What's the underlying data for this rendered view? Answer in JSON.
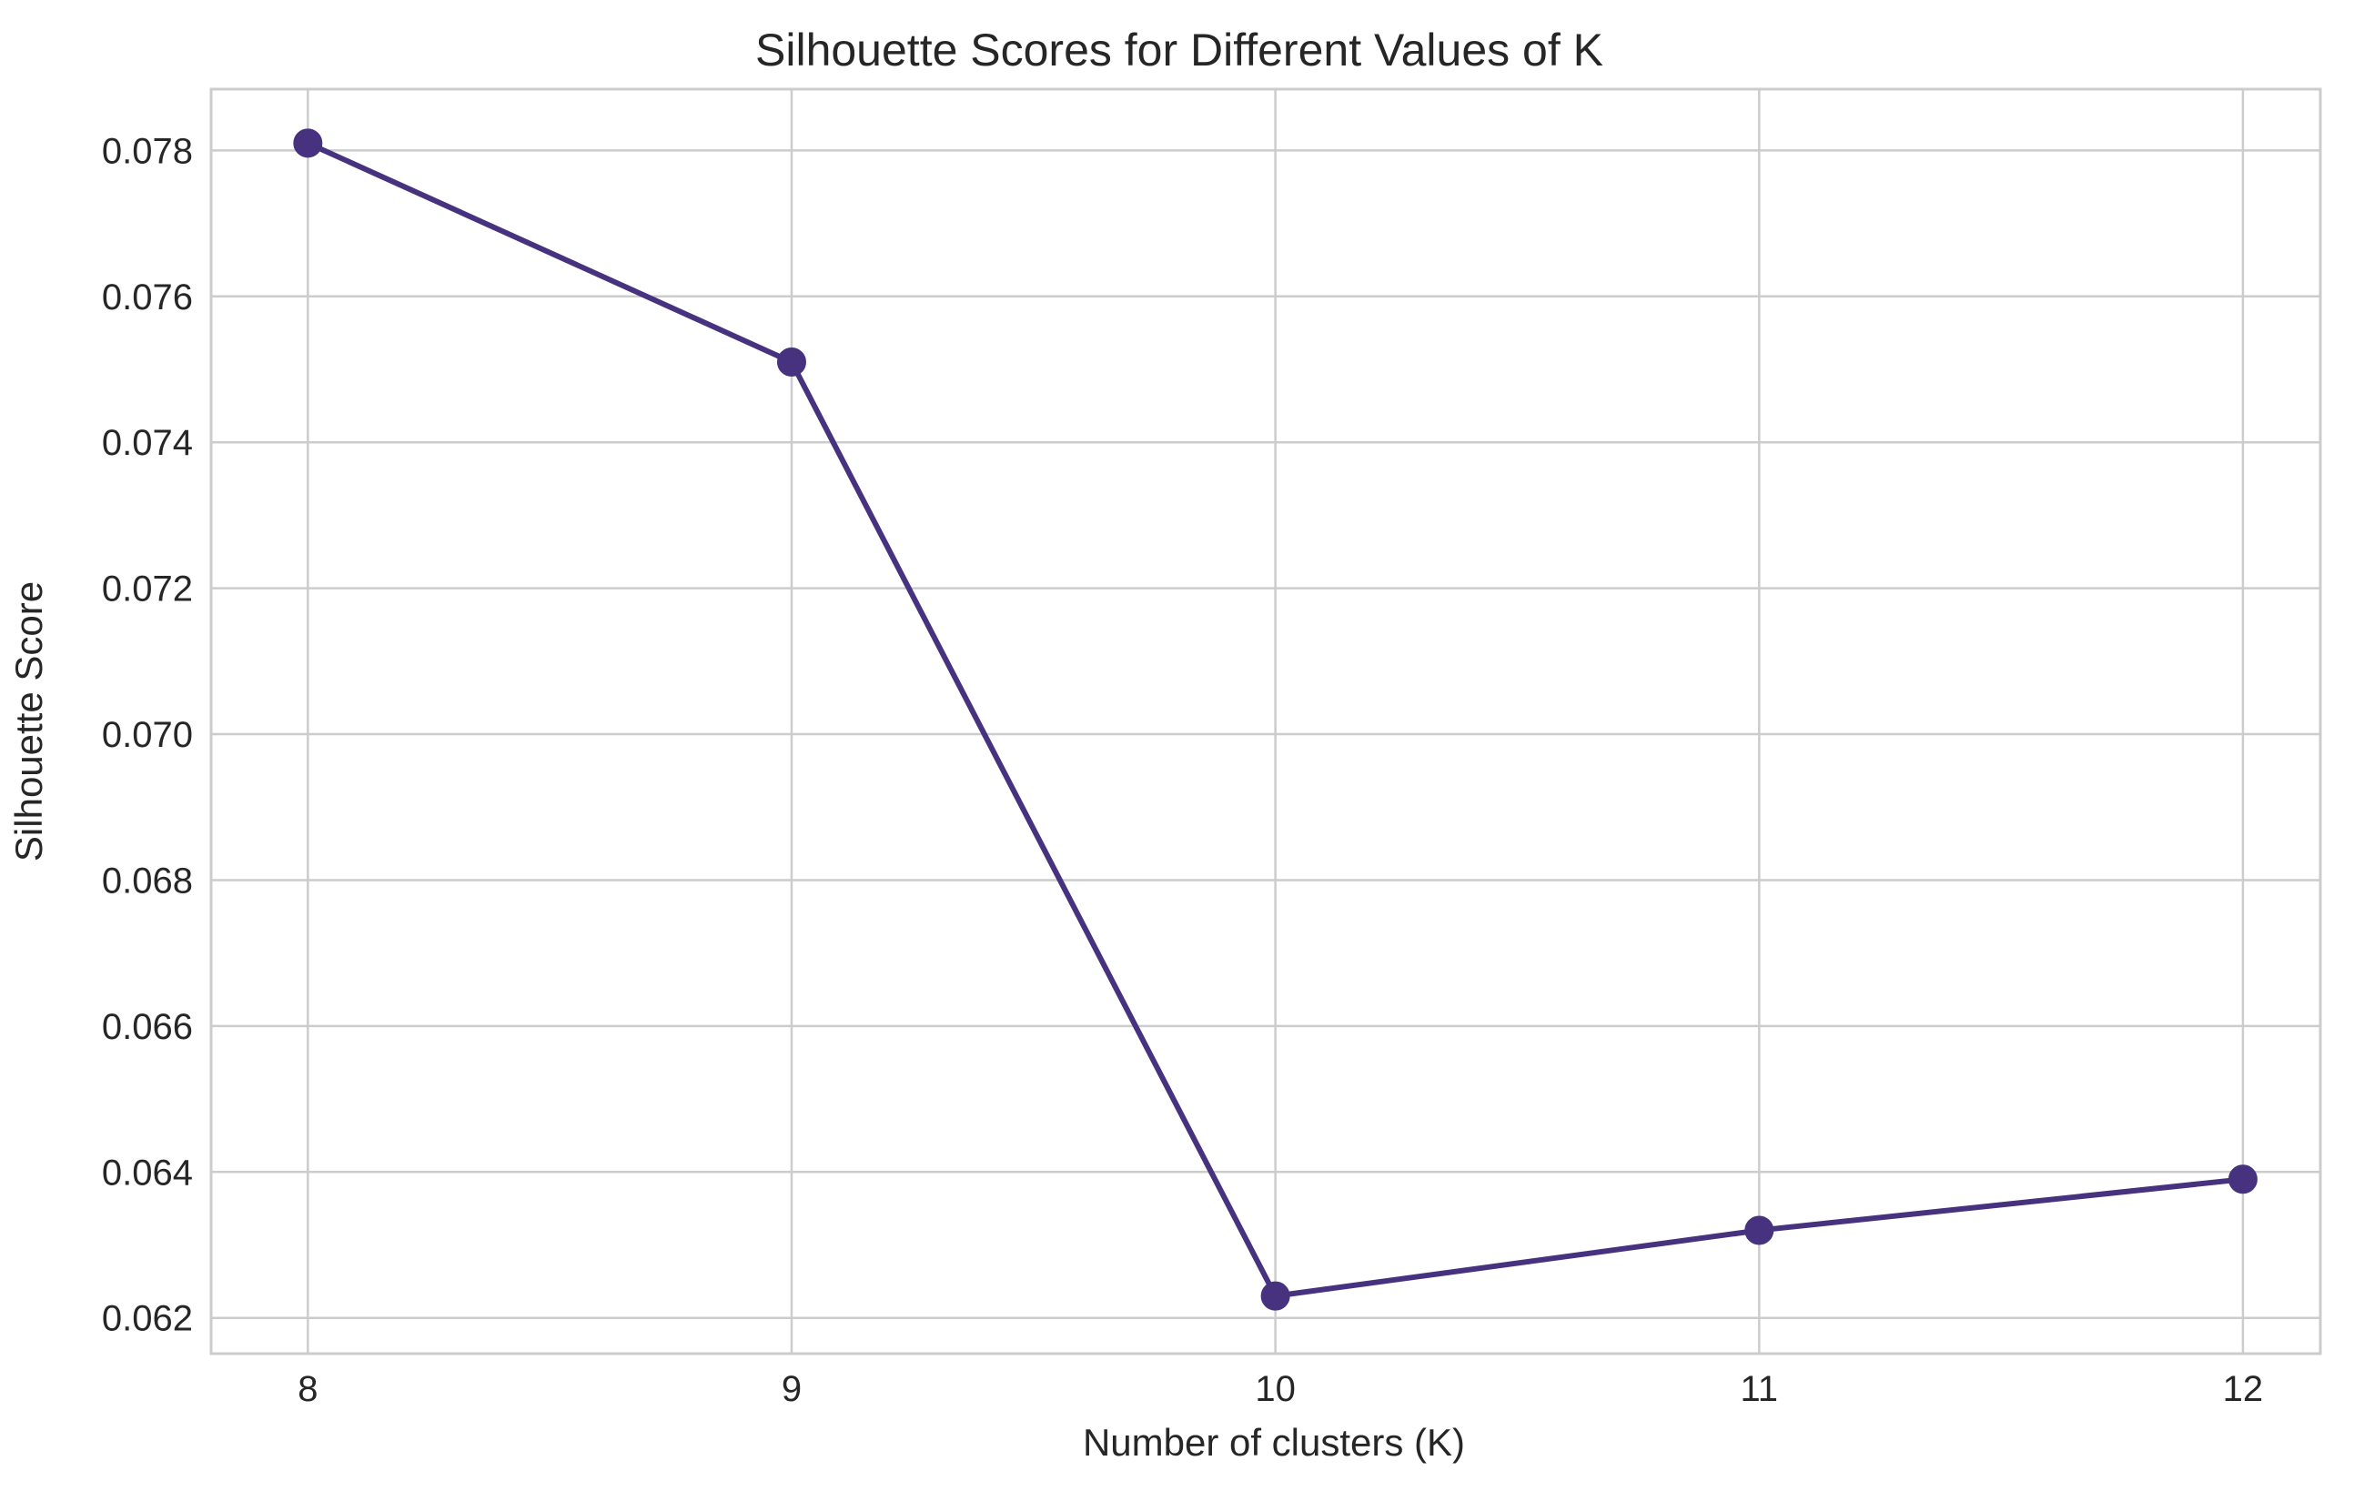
{
  "chart_data": {
    "type": "line",
    "title": "Silhouette Scores for Different Values of K",
    "xlabel": "Number of clusters (K)",
    "ylabel": "Silhouette Score",
    "x": [
      8,
      9,
      10,
      11,
      12
    ],
    "x_tick_labels": [
      "8",
      "9",
      "10",
      "11",
      "12"
    ],
    "y_ticks": [
      0.062,
      0.064,
      0.066,
      0.068,
      0.07,
      0.072,
      0.074,
      0.076,
      0.078
    ],
    "y_tick_labels": [
      "0.062",
      "0.064",
      "0.066",
      "0.068",
      "0.070",
      "0.072",
      "0.074",
      "0.076",
      "0.078"
    ],
    "xlim": [
      7.8,
      12.16
    ],
    "ylim": [
      0.06151,
      0.07884
    ],
    "grid": true,
    "series": [
      {
        "values": [
          0.0781,
          0.0751,
          0.0623,
          0.0632,
          0.0639
        ],
        "color": "#46327e",
        "marker": "circle"
      }
    ]
  }
}
